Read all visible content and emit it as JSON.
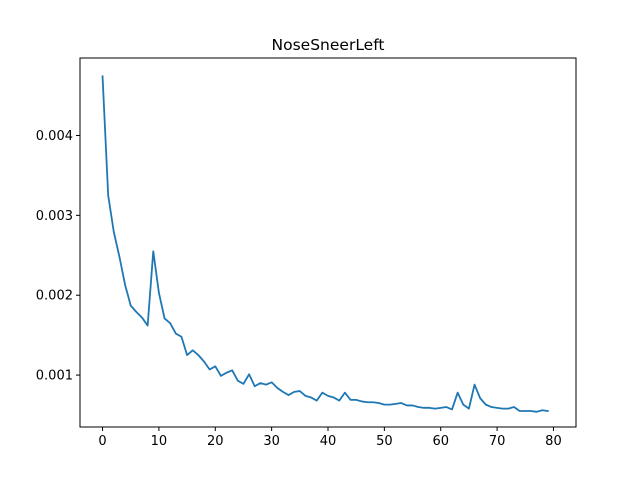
{
  "chart_data": {
    "type": "line",
    "title": "NoseSneerLeft",
    "xlabel": "",
    "ylabel": "",
    "xlim": [
      -4,
      84
    ],
    "ylim": [
      0.00035,
      0.00497
    ],
    "x_ticks": [
      0,
      10,
      20,
      30,
      40,
      50,
      60,
      70,
      80
    ],
    "y_ticks": [
      0.001,
      0.002,
      0.003,
      0.004
    ],
    "x_tick_labels": [
      "0",
      "10",
      "20",
      "30",
      "40",
      "50",
      "60",
      "70",
      "80"
    ],
    "y_tick_labels": [
      "0.001",
      "0.002",
      "0.003",
      "0.004"
    ],
    "grid": false,
    "legend": "none",
    "series": [
      {
        "color": "#1f77b4",
        "x": [
          0,
          1,
          2,
          3,
          4,
          5,
          6,
          7,
          8,
          9,
          10,
          11,
          12,
          13,
          14,
          15,
          16,
          17,
          18,
          19,
          20,
          21,
          22,
          23,
          24,
          25,
          26,
          27,
          28,
          29,
          30,
          31,
          32,
          33,
          34,
          35,
          36,
          37,
          38,
          39,
          40,
          41,
          42,
          43,
          44,
          45,
          46,
          47,
          48,
          49,
          50,
          51,
          52,
          53,
          54,
          55,
          56,
          57,
          58,
          59,
          60,
          61,
          62,
          63,
          64,
          65,
          66,
          67,
          68,
          69,
          70,
          71,
          72,
          73,
          74,
          75,
          76,
          77,
          78,
          79
        ],
        "values": [
          0.00474,
          0.00325,
          0.00279,
          0.00248,
          0.00213,
          0.00187,
          0.00179,
          0.00172,
          0.00162,
          0.00255,
          0.00203,
          0.00171,
          0.00165,
          0.00152,
          0.00148,
          0.00125,
          0.00131,
          0.00125,
          0.00117,
          0.00107,
          0.00111,
          0.00099,
          0.00103,
          0.00106,
          0.00093,
          0.00089,
          0.00101,
          0.00086,
          0.0009,
          0.00088,
          0.00091,
          0.00084,
          0.00079,
          0.00075,
          0.00079,
          0.0008,
          0.00074,
          0.00072,
          0.00068,
          0.00078,
          0.00074,
          0.00072,
          0.00068,
          0.00078,
          0.00069,
          0.00069,
          0.00067,
          0.00066,
          0.00066,
          0.00065,
          0.00063,
          0.00063,
          0.00064,
          0.00065,
          0.00062,
          0.00062,
          0.0006,
          0.00059,
          0.00059,
          0.00058,
          0.00059,
          0.0006,
          0.00057,
          0.00078,
          0.00063,
          0.00058,
          0.00088,
          0.00071,
          0.00063,
          0.0006,
          0.00059,
          0.00058,
          0.00058,
          0.0006,
          0.00055,
          0.00055,
          0.00055,
          0.00054,
          0.00056,
          0.00055
        ]
      }
    ]
  }
}
